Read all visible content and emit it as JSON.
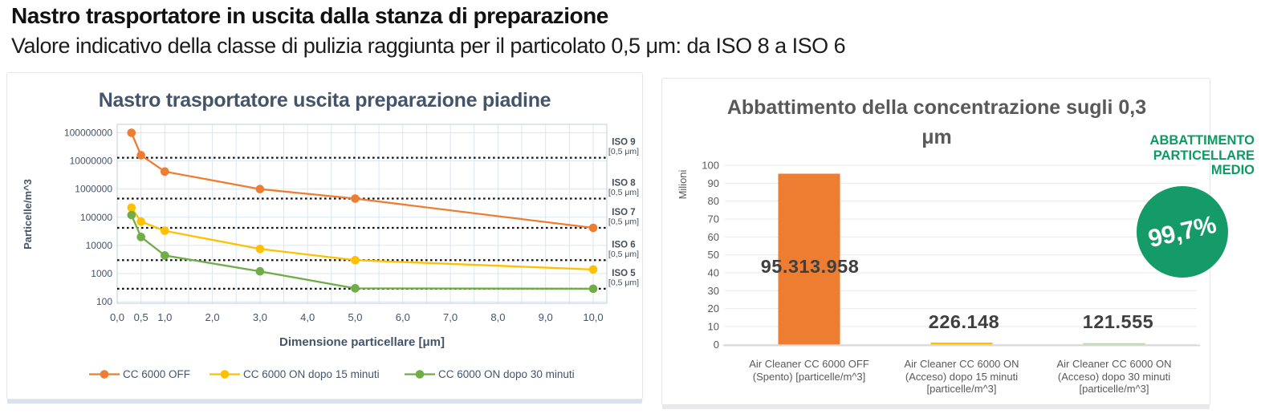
{
  "header": {
    "title": "Nastro trasportatore in uscita dalla stanza di preparazione",
    "subtitle": "Valore indicativo della classe di pulizia raggiunta per il particolato 0,5 μm: da ISO 8 a ISO 6"
  },
  "chart_data": [
    {
      "type": "line",
      "title": "Nastro trasportatore uscita preparazione piadine",
      "xlabel": "Dimensione particellare [μm]",
      "ylabel": "Particelle/m^3",
      "x_scale": "linear",
      "y_scale": "log",
      "xlim": [
        0,
        10.2
      ],
      "ylim": [
        100,
        100000000
      ],
      "grid": true,
      "legend_position": "bottom",
      "x_ticks": [
        "0,0",
        "0,5",
        "1,0",
        "2,0",
        "3,0",
        "4,0",
        "5,0",
        "6,0",
        "7,0",
        "8,0",
        "9,0",
        "10,0"
      ],
      "x_tick_values": [
        0,
        0.5,
        1,
        2,
        3,
        4,
        5,
        6,
        7,
        8,
        9,
        10
      ],
      "y_ticks": [
        "100000000",
        "10000000",
        "1000000",
        "100000",
        "10000",
        "1000",
        "100"
      ],
      "y_tick_values": [
        100000000,
        10000000,
        1000000,
        100000,
        10000,
        1000,
        100
      ],
      "x": [
        0.3,
        0.5,
        1.0,
        3.0,
        5.0,
        10.0
      ],
      "series": [
        {
          "name": "CC 6000 OFF",
          "color": "#ED7D31",
          "values": [
            100000000,
            16000000,
            4200000,
            1000000,
            460000,
            42000
          ]
        },
        {
          "name": "CC 6000 ON dopo 15 minuti",
          "color": "#FFC000",
          "values": [
            220000,
            70000,
            33000,
            7500,
            3000,
            1400
          ]
        },
        {
          "name": "CC 6000 ON dopo 30 minuti",
          "color": "#70AD47",
          "values": [
            120000,
            20000,
            4400,
            1200,
            300,
            290
          ]
        }
      ],
      "reference_lines": [
        {
          "label": "ISO 9",
          "sublabel": "[0,5 μm]",
          "value": 13000000
        },
        {
          "label": "ISO 8",
          "sublabel": "[0,5 μm]",
          "value": 460000
        },
        {
          "label": "ISO 7",
          "sublabel": "[0,5 μm]",
          "value": 42000
        },
        {
          "label": "ISO 6",
          "sublabel": "[0,5 μm]",
          "value": 3000
        },
        {
          "label": "ISO 5",
          "sublabel": "[0,5 μm]",
          "value": 290
        }
      ]
    },
    {
      "type": "bar",
      "title": "Abbattimento della concentrazione sugli 0,3 μm",
      "title_lines": [
        "Abbattimento della concentrazione sugli 0,3",
        "μm"
      ],
      "ylabel": "Milioni",
      "ylim": [
        0,
        100
      ],
      "grid": true,
      "y_ticks": [
        "0",
        "10",
        "20",
        "30",
        "40",
        "50",
        "60",
        "70",
        "80",
        "90",
        "100"
      ],
      "y_tick_values": [
        0,
        10,
        20,
        30,
        40,
        50,
        60,
        70,
        80,
        90,
        100
      ],
      "categories": [
        [
          "Air Cleaner CC 6000 OFF",
          "(Spento) [particelle/m^3]"
        ],
        [
          "Air Cleaner CC 6000 ON",
          "(Acceso) dopo 15 minuti",
          "[particelle/m^3]"
        ],
        [
          "Air Cleaner CC 6000 ON",
          "(Acceso) dopo 30 minuti",
          "[particelle/m^3]"
        ]
      ],
      "values": [
        95313958,
        226148,
        121555
      ],
      "value_labels": [
        "95.313.958",
        "226.148",
        "121.555"
      ],
      "bar_colors": [
        "#ED7D31",
        "#FFC000",
        "#70AD47"
      ]
    }
  ],
  "abatement_badge": {
    "label_lines": [
      "ABBATTIMENTO",
      "PARTICELLARE",
      "MEDIO"
    ],
    "value": "99,7%",
    "circle_color": "#149B68",
    "text_color": "#0E9B63"
  },
  "colors": {
    "left_axis_text": "#44546A",
    "right_axis_text": "#595959",
    "grid_left": "#dce5f1",
    "grid_right": "#e9e9e9",
    "reference_line": "#141414",
    "value_label": "#3f3f3f"
  }
}
